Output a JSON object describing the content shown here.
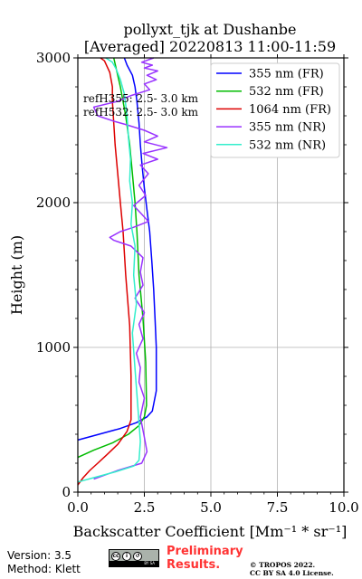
{
  "chart_data": {
    "type": "line",
    "title": "pollyxt_tjk at Dushanbe",
    "subtitle": "[Averaged] 20220813 11:00-11:59",
    "xlabel": "Backscatter Coefficient [Mm⁻¹ * sr⁻¹]",
    "ylabel": "Height (m)",
    "xlim": [
      0,
      10
    ],
    "ylim": [
      0,
      3000
    ],
    "xticks": [
      0,
      2.5,
      5,
      7.5,
      10
    ],
    "xtick_labels": [
      "0.0",
      "2.5",
      "5.0",
      "7.5",
      "10.0"
    ],
    "yticks": [
      0,
      1000,
      2000,
      3000
    ],
    "ytick_labels": [
      "0",
      "1000",
      "2000",
      "3000"
    ],
    "grid": true,
    "legend_position": "top-right",
    "annotations": [
      "refH355:  2.5- 3.0 km",
      "refH532:  2.5- 3.0 km"
    ],
    "series": [
      {
        "name": "355 nm (FR)",
        "color": "#0000ff",
        "x": [
          0.0,
          0.8,
          1.6,
          2.2,
          2.6,
          2.8,
          2.95,
          2.95,
          2.9,
          2.85,
          2.78,
          2.7,
          2.6,
          2.5,
          2.42,
          2.35,
          2.3,
          2.22,
          2.15,
          2.05,
          1.85,
          1.75
        ],
        "y": [
          360,
          400,
          440,
          480,
          520,
          560,
          700,
          1000,
          1200,
          1400,
          1600,
          1800,
          1950,
          2100,
          2250,
          2400,
          2550,
          2700,
          2800,
          2880,
          2950,
          3000
        ]
      },
      {
        "name": "532 nm (FR)",
        "color": "#00bb00",
        "x": [
          0.0,
          0.6,
          1.3,
          1.9,
          2.3,
          2.5,
          2.58,
          2.55,
          2.45,
          2.3,
          2.22,
          2.15,
          2.05,
          1.95,
          1.8,
          1.6,
          1.35
        ],
        "y": [
          240,
          290,
          340,
          400,
          460,
          520,
          600,
          900,
          1200,
          1500,
          1800,
          2000,
          2200,
          2400,
          2600,
          2800,
          3000
        ]
      },
      {
        "name": "1064 nm (FR)",
        "color": "#dd0000",
        "x": [
          0.0,
          0.2,
          0.45,
          0.75,
          1.1,
          1.5,
          1.85,
          2.0,
          2.0,
          1.95,
          1.8,
          1.7,
          1.6,
          1.5,
          1.4,
          1.35,
          1.3,
          1.3,
          1.2,
          1.0,
          0.85
        ],
        "y": [
          50,
          100,
          150,
          200,
          260,
          330,
          420,
          500,
          800,
          1150,
          1500,
          1800,
          2000,
          2200,
          2400,
          2550,
          2700,
          2800,
          2900,
          2980,
          3000
        ]
      },
      {
        "name": "355 nm (NR)",
        "color": "#9933ff",
        "x": [
          0.6,
          1.5,
          2.4,
          2.6,
          2.5,
          2.35,
          2.5,
          2.3,
          2.35,
          2.2,
          2.45,
          2.3,
          2.5,
          2.15,
          2.45,
          2.35,
          2.45,
          2.0,
          1.35,
          1.2,
          1.6,
          2.1,
          2.65,
          2.4,
          2.1,
          2.55,
          2.3,
          2.65,
          2.35,
          3.0,
          2.45,
          3.35,
          2.5,
          3.0,
          2.5,
          1.8,
          1.4,
          0.75,
          0.6,
          1.5,
          2.0,
          2.7,
          2.5,
          2.95,
          2.6,
          3.0,
          2.5,
          2.8,
          2.4,
          2.85
        ],
        "y": [
          90,
          150,
          200,
          280,
          380,
          520,
          650,
          760,
          860,
          960,
          1060,
          1160,
          1240,
          1340,
          1430,
          1520,
          1620,
          1700,
          1740,
          1760,
          1800,
          1830,
          1870,
          1920,
          1980,
          2050,
          2120,
          2200,
          2260,
          2300,
          2340,
          2380,
          2420,
          2460,
          2500,
          2540,
          2560,
          2600,
          2660,
          2700,
          2740,
          2780,
          2820,
          2850,
          2880,
          2910,
          2930,
          2950,
          2970,
          3000
        ]
      },
      {
        "name": "532 nm (NR)",
        "color": "#33eecc",
        "x": [
          0.0,
          0.6,
          1.4,
          2.1,
          2.3,
          2.35,
          2.25,
          2.15,
          2.05,
          2.2,
          2.1,
          2.15,
          2.0,
          2.05,
          1.95,
          1.98,
          1.9,
          1.85,
          1.75,
          1.6,
          1.45,
          1.3,
          1.05
        ],
        "y": [
          70,
          100,
          140,
          180,
          220,
          350,
          600,
          850,
          1100,
          1300,
          1500,
          1700,
          1850,
          2000,
          2150,
          2300,
          2450,
          2600,
          2750,
          2850,
          2920,
          2970,
          3000
        ]
      }
    ]
  }
}
